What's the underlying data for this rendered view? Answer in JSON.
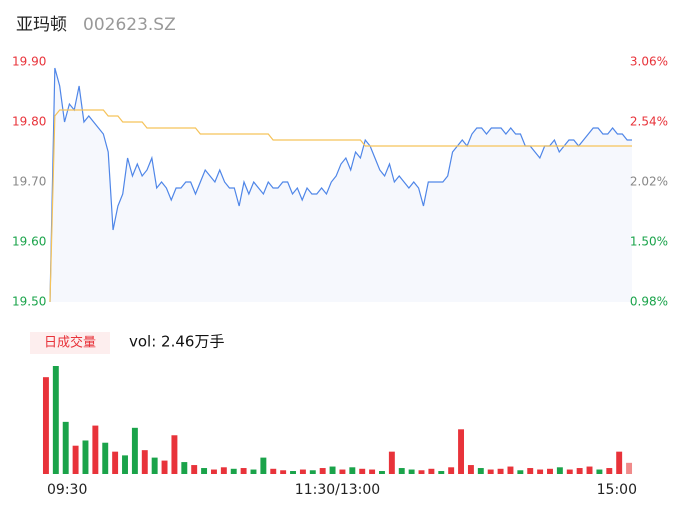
{
  "chart_data": {
    "type": "line",
    "title": "亚玛顿",
    "subtitle": "002623.SZ",
    "x": [
      0,
      2,
      4,
      6,
      8,
      10,
      12,
      14,
      16,
      18,
      20,
      22,
      24,
      26,
      28,
      30,
      32,
      34,
      36,
      38,
      40,
      42,
      44,
      46,
      48,
      50,
      52,
      54,
      56,
      58,
      60,
      62,
      64,
      66,
      68,
      70,
      72,
      74,
      76,
      78,
      80,
      82,
      84,
      86,
      88,
      90,
      92,
      94,
      96,
      98,
      100,
      102,
      104,
      106,
      108,
      110,
      112,
      114,
      116,
      118,
      120,
      122,
      124,
      126,
      128,
      130,
      132,
      134,
      136,
      138,
      140,
      142,
      144,
      146,
      148,
      150,
      152,
      154,
      156,
      158,
      160,
      162,
      164,
      166,
      168,
      170,
      172,
      174,
      176,
      178,
      180,
      182,
      184,
      186,
      188,
      190,
      192,
      194,
      196,
      198,
      200,
      202,
      204,
      206,
      208,
      210,
      212,
      214,
      216,
      218,
      220,
      222,
      224,
      226,
      228,
      230,
      232,
      234,
      236,
      238,
      240
    ],
    "xlim": [
      0,
      240
    ],
    "xticks": [
      {
        "value": 0,
        "label": "09:30"
      },
      {
        "value": 120,
        "label": "11:30/13:00"
      },
      {
        "value": 240,
        "label": "15:00"
      }
    ],
    "ylim": [
      19.5,
      19.9
    ],
    "yticks": [
      {
        "value": 19.9,
        "label": "19.90"
      },
      {
        "value": 19.8,
        "label": "19.80"
      },
      {
        "value": 19.7,
        "label": "19.70"
      },
      {
        "value": 19.6,
        "label": "19.60"
      },
      {
        "value": 19.5,
        "label": "19.50"
      }
    ],
    "ytick_colors": [
      "#e8333a",
      "#e8333a",
      "#888888",
      "#1aa34a",
      "#1aa34a"
    ],
    "y2lim": [
      0.98,
      3.06
    ],
    "y2ticks": [
      {
        "value": 3.06,
        "label": "3.06%"
      },
      {
        "value": 2.54,
        "label": "2.54%"
      },
      {
        "value": 2.02,
        "label": "2.02%"
      },
      {
        "value": 1.5,
        "label": "1.50%"
      },
      {
        "value": 0.98,
        "label": "0.98%"
      }
    ],
    "series": [
      {
        "color": "#4f86e8",
        "values": [
          19.5,
          19.89,
          19.86,
          19.8,
          19.83,
          19.82,
          19.86,
          19.8,
          19.81,
          19.8,
          19.79,
          19.78,
          19.75,
          19.62,
          19.66,
          19.68,
          19.74,
          19.71,
          19.73,
          19.71,
          19.72,
          19.74,
          19.69,
          19.7,
          19.69,
          19.67,
          19.69,
          19.69,
          19.7,
          19.7,
          19.68,
          19.7,
          19.72,
          19.71,
          19.7,
          19.72,
          19.7,
          19.69,
          19.69,
          19.66,
          19.7,
          19.68,
          19.7,
          19.69,
          19.68,
          19.7,
          19.69,
          19.69,
          19.7,
          19.7,
          19.68,
          19.69,
          19.67,
          19.69,
          19.68,
          19.68,
          19.69,
          19.68,
          19.7,
          19.71,
          19.73,
          19.74,
          19.72,
          19.75,
          19.74,
          19.77,
          19.76,
          19.74,
          19.72,
          19.71,
          19.73,
          19.7,
          19.71,
          19.7,
          19.69,
          19.7,
          19.69,
          19.66,
          19.7,
          19.7,
          19.7,
          19.7,
          19.71,
          19.75,
          19.76,
          19.77,
          19.76,
          19.78,
          19.79,
          19.79,
          19.78,
          19.79,
          19.79,
          19.79,
          19.78,
          19.79,
          19.78,
          19.78,
          19.76,
          19.76,
          19.75,
          19.74,
          19.76,
          19.76,
          19.77,
          19.75,
          19.76,
          19.77,
          19.77,
          19.76,
          19.77,
          19.78,
          19.79,
          19.79,
          19.78,
          19.78,
          19.79,
          19.78,
          19.78,
          19.77,
          19.77
        ]
      },
      {
        "color": "#f5c35a",
        "values": [
          19.5,
          19.81,
          19.82,
          19.82,
          19.82,
          19.82,
          19.82,
          19.82,
          19.82,
          19.82,
          19.82,
          19.82,
          19.81,
          19.81,
          19.81,
          19.8,
          19.8,
          19.8,
          19.8,
          19.8,
          19.79,
          19.79,
          19.79,
          19.79,
          19.79,
          19.79,
          19.79,
          19.79,
          19.79,
          19.79,
          19.79,
          19.78,
          19.78,
          19.78,
          19.78,
          19.78,
          19.78,
          19.78,
          19.78,
          19.78,
          19.78,
          19.78,
          19.78,
          19.78,
          19.78,
          19.78,
          19.77,
          19.77,
          19.77,
          19.77,
          19.77,
          19.77,
          19.77,
          19.77,
          19.77,
          19.77,
          19.77,
          19.77,
          19.77,
          19.77,
          19.77,
          19.77,
          19.77,
          19.77,
          19.77,
          19.76,
          19.76,
          19.76,
          19.76,
          19.76,
          19.76,
          19.76,
          19.76,
          19.76,
          19.76,
          19.76,
          19.76,
          19.76,
          19.76,
          19.76,
          19.76,
          19.76,
          19.76,
          19.76,
          19.76,
          19.76,
          19.76,
          19.76,
          19.76,
          19.76,
          19.76,
          19.76,
          19.76,
          19.76,
          19.76,
          19.76,
          19.76,
          19.76,
          19.76,
          19.76,
          19.76,
          19.76,
          19.76,
          19.76,
          19.76,
          19.76,
          19.76,
          19.76,
          19.76,
          19.76,
          19.76,
          19.76,
          19.76,
          19.76,
          19.76,
          19.76,
          19.76,
          19.76,
          19.76,
          19.76,
          19.76
        ]
      }
    ],
    "volume": {
      "label": "日成交量",
      "text": "vol: 2.46万手",
      "values": [
        1300,
        1450,
        700,
        380,
        450,
        650,
        420,
        300,
        250,
        620,
        320,
        220,
        180,
        520,
        160,
        120,
        80,
        60,
        90,
        70,
        80,
        60,
        220,
        70,
        50,
        40,
        60,
        50,
        80,
        100,
        60,
        90,
        70,
        60,
        40,
        300,
        80,
        60,
        50,
        70,
        40,
        90,
        600,
        120,
        80,
        60,
        70,
        100,
        50,
        80,
        60,
        70,
        90,
        60,
        80,
        100,
        60,
        80,
        300,
        150
      ],
      "colors": [
        "#e8333a",
        "#1aa34a",
        "#1aa34a",
        "#e8333a",
        "#1aa34a",
        "#e8333a",
        "#1aa34a",
        "#e8333a",
        "#1aa34a",
        "#1aa34a",
        "#e8333a",
        "#1aa34a",
        "#e8333a",
        "#e8333a",
        "#1aa34a",
        "#e8333a",
        "#1aa34a",
        "#e8333a",
        "#e8333a",
        "#1aa34a",
        "#e8333a",
        "#1aa34a",
        "#1aa34a",
        "#e8333a",
        "#e8333a",
        "#1aa34a",
        "#e8333a",
        "#1aa34a",
        "#e8333a",
        "#1aa34a",
        "#e8333a",
        "#1aa34a",
        "#e8333a",
        "#e8333a",
        "#1aa34a",
        "#e8333a",
        "#1aa34a",
        "#1aa34a",
        "#e8333a",
        "#e8333a",
        "#1aa34a",
        "#e8333a",
        "#e8333a",
        "#e8333a",
        "#1aa34a",
        "#e8333a",
        "#e8333a",
        "#e8333a",
        "#1aa34a",
        "#e8333a",
        "#e8333a",
        "#e8333a",
        "#1aa34a",
        "#e8333a",
        "#e8333a",
        "#e8333a",
        "#1aa34a",
        "#e8333a",
        "#e8333a",
        "#f08a8a"
      ]
    }
  }
}
